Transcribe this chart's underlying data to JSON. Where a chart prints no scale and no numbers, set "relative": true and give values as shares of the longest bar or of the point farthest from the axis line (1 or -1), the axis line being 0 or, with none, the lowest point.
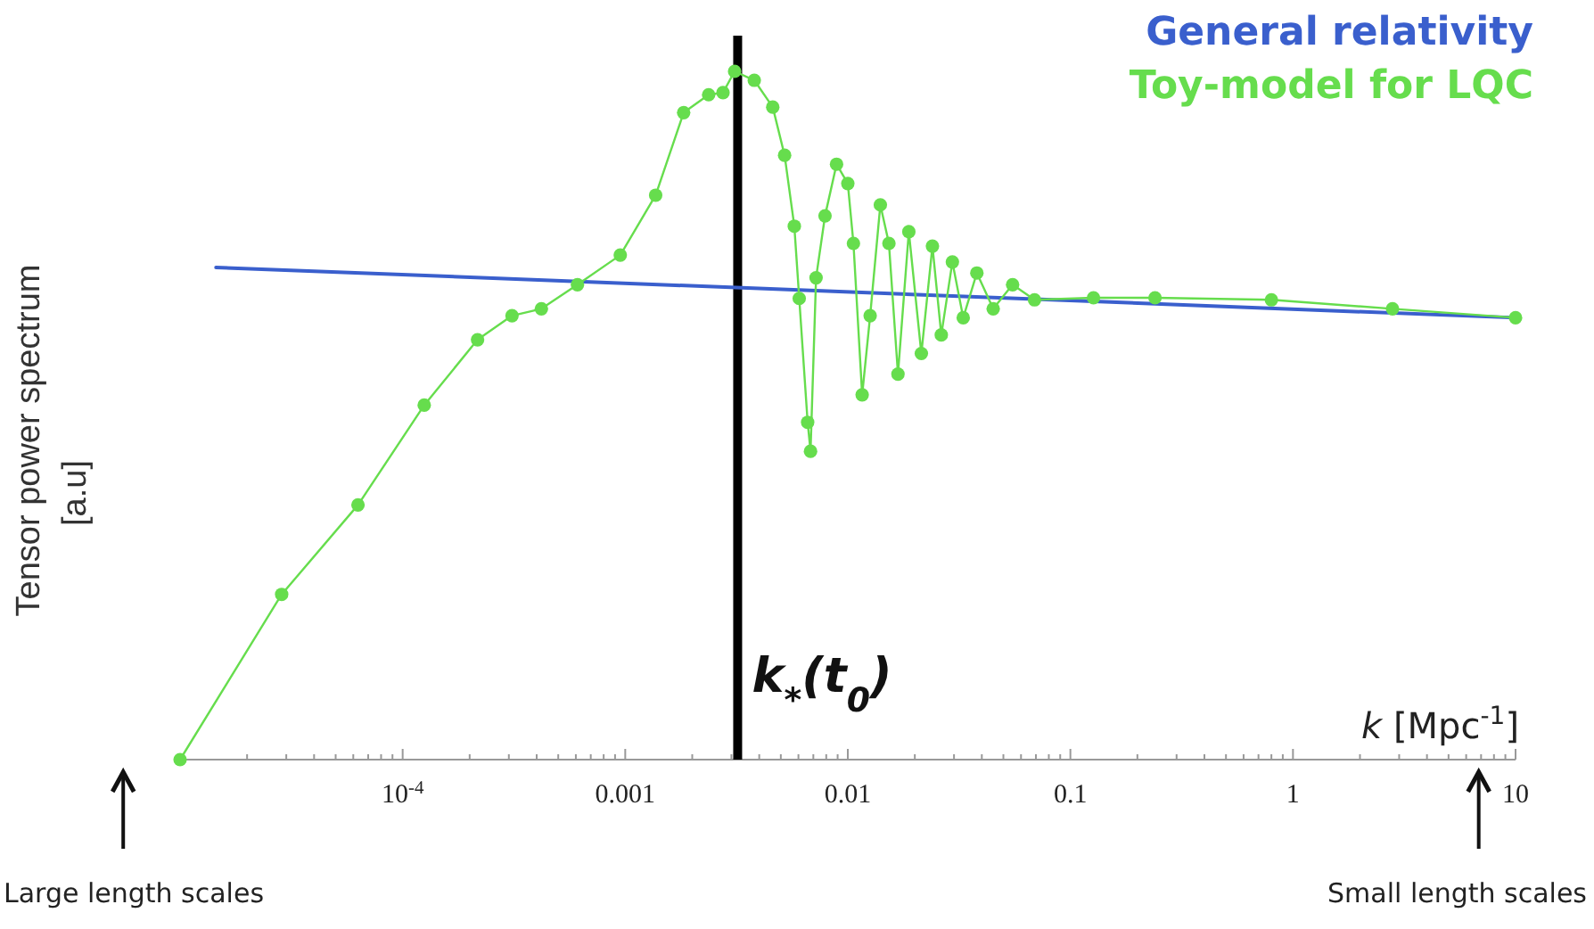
{
  "chart_data": {
    "type": "line",
    "relative": true,
    "log": "x",
    "legend": "top right",
    "grid": false,
    "ylabel": "Tensor power spectrum\n[a.u]",
    "xlabel": "k [Mpc$^{-1}$]",
    "xlim": [
      1e-05,
      10
    ],
    "xticks": [
      {
        "value": 0.0001,
        "label": "10$^{-4}$"
      },
      0.001,
      0.01,
      0.1,
      1,
      10,
      {
        "value": 2e-05,
        "label": null
      },
      {
        "value": 3e-05,
        "label": null
      },
      {
        "value": 4e-05,
        "label": null
      },
      {
        "value": 5e-05,
        "label": null
      },
      {
        "value": 6e-05,
        "label": null
      },
      {
        "value": 7e-05,
        "label": null
      },
      {
        "value": 8e-05,
        "label": null
      },
      {
        "value": 9e-05,
        "label": null
      },
      {
        "value": 0.0002,
        "label": null
      },
      {
        "value": 0.0003,
        "label": null
      },
      {
        "value": 0.0004,
        "label": null
      },
      {
        "value": 0.0005,
        "label": null
      },
      {
        "value": 0.0006,
        "label": null
      },
      {
        "value": 0.0007,
        "label": null
      },
      {
        "value": 0.0008,
        "label": null
      },
      {
        "value": 0.0009,
        "label": null
      },
      {
        "value": 0.002,
        "label": null
      },
      {
        "value": 0.003,
        "label": null
      },
      {
        "value": 0.004,
        "label": null
      },
      {
        "value": 0.005,
        "label": null
      },
      {
        "value": 0.006,
        "label": null
      },
      {
        "value": 0.007,
        "label": null
      },
      {
        "value": 0.008,
        "label": null
      },
      {
        "value": 0.009,
        "label": null
      },
      {
        "value": 0.02,
        "label": null
      },
      {
        "value": 0.03,
        "label": null
      },
      {
        "value": 0.04,
        "label": null
      },
      {
        "value": 0.05,
        "label": null
      },
      {
        "value": 0.06,
        "label": null
      },
      {
        "value": 0.07,
        "label": null
      },
      {
        "value": 0.08,
        "label": null
      },
      {
        "value": 0.09,
        "label": null
      },
      {
        "value": 0.2,
        "label": null
      },
      {
        "value": 0.3,
        "label": null
      },
      {
        "value": 0.4,
        "label": null
      },
      {
        "value": 0.5,
        "label": null
      },
      {
        "value": 0.6,
        "label": null
      },
      {
        "value": 0.7,
        "label": null
      },
      {
        "value": 0.8,
        "label": null
      },
      {
        "value": 0.9,
        "label": null
      },
      {
        "value": 2,
        "label": null
      },
      {
        "value": 3,
        "label": null
      },
      {
        "value": 4,
        "label": null
      },
      {
        "value": 5,
        "label": null
      },
      {
        "value": 6,
        "label": null
      },
      {
        "value": 7,
        "label": null
      },
      {
        "value": 8,
        "label": null
      },
      {
        "value": 9,
        "label": null
      }
    ],
    "ref_lines": [
      {
        "axis": "x",
        "value": 0.0032,
        "label": "k$_{*}$(t$_{0}$)",
        "color": "#000000"
      }
    ],
    "annotations": [
      "Large length scales",
      "Small length scales"
    ],
    "series": [
      {
        "name": "General relativity",
        "color": "#3a5fcd",
        "marker": "none",
        "line_style": "solid",
        "x": [
          1.45e-05,
          10
        ],
        "values": [
          0.715,
          0.642
        ]
      },
      {
        "name": "Toy-model for LQC",
        "color": "#66dd4d",
        "marker": "circle",
        "line_style": "solid",
        "x": [
          1e-05,
          2.86e-05,
          6.3e-05,
          0.000125,
          0.000217,
          0.00031,
          0.00042,
          0.00061,
          0.00095,
          0.00137,
          0.00183,
          0.00237,
          0.00275,
          0.0031,
          0.0038,
          0.0046,
          0.0052,
          0.00575,
          0.00605,
          0.0066,
          0.0068,
          0.0072,
          0.0079,
          0.0089,
          0.01,
          0.0106,
          0.0116,
          0.0126,
          0.014,
          0.0153,
          0.0168,
          0.0188,
          0.0214,
          0.024,
          0.0263,
          0.0295,
          0.033,
          0.038,
          0.045,
          0.055,
          0.069,
          0.127,
          0.24,
          0.8,
          2.8,
          10
        ],
        "values": [
          0,
          0.24,
          0.37,
          0.515,
          0.61,
          0.645,
          0.655,
          0.69,
          0.733,
          0.82,
          0.94,
          0.966,
          0.969,
          1,
          0.987,
          0.948,
          0.878,
          0.775,
          0.67,
          0.49,
          0.448,
          0.7,
          0.79,
          0.865,
          0.837,
          0.75,
          0.53,
          0.645,
          0.806,
          0.75,
          0.56,
          0.767,
          0.59,
          0.746,
          0.617,
          0.723,
          0.642,
          0.707,
          0.655,
          0.69,
          0.668,
          0.671,
          0.671,
          0.668,
          0.655,
          0.642
        ]
      }
    ]
  }
}
